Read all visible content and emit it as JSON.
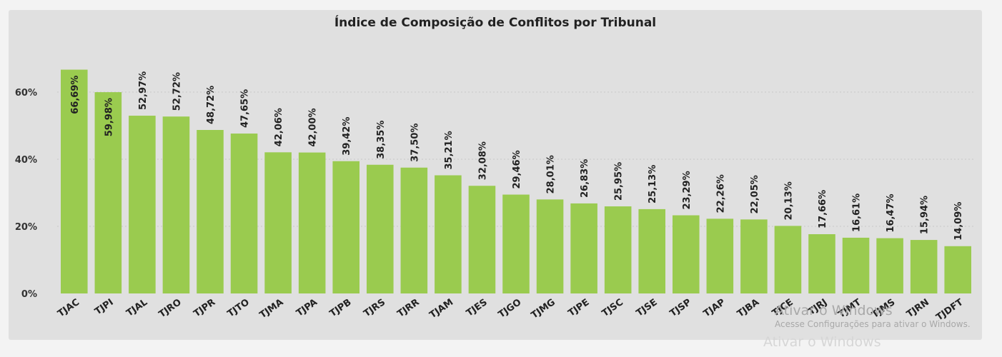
{
  "chart_data": {
    "type": "bar",
    "title": "Índice de Composição de Conflitos por Tribunal",
    "xlabel": "",
    "ylabel": "",
    "ylim": [
      0,
      70
    ],
    "yticks": [
      "0%",
      "20%",
      "40%",
      "60%"
    ],
    "ytick_values": [
      0,
      20,
      40,
      60
    ],
    "grid": true,
    "bar_color": "#9acb4f",
    "categories": [
      "TJAC",
      "TJPI",
      "TJAL",
      "TJRO",
      "TJPR",
      "TJTO",
      "TJMA",
      "TJPA",
      "TJPB",
      "TJRS",
      "TJRR",
      "TJAM",
      "TJES",
      "TJGO",
      "TJMG",
      "TJPE",
      "TJSC",
      "TJSE",
      "TJSP",
      "TJAP",
      "TJBA",
      "TJCE",
      "TJRJ",
      "TJMT",
      "TJMS",
      "TJRN",
      "TJDFT"
    ],
    "values": [
      66.69,
      59.98,
      52.97,
      52.72,
      48.72,
      47.65,
      42.06,
      42.0,
      39.42,
      38.35,
      37.5,
      35.21,
      32.08,
      29.46,
      28.01,
      26.83,
      25.95,
      25.13,
      23.29,
      22.26,
      22.05,
      20.13,
      17.66,
      16.61,
      16.47,
      15.94,
      14.09
    ],
    "data_labels": [
      "66,69%",
      "59,98%",
      "52,97%",
      "52,72%",
      "48,72%",
      "47,65%",
      "42,06%",
      "42,00%",
      "39,42%",
      "38,35%",
      "37,50%",
      "35,21%",
      "32,08%",
      "29,46%",
      "28,01%",
      "26,83%",
      "25,95%",
      "25,13%",
      "23,29%",
      "22,26%",
      "22,05%",
      "20,13%",
      "17,66%",
      "16,61%",
      "16,47%",
      "15,94%",
      "14,09%"
    ]
  },
  "watermark": {
    "title": "Ativar o Windows",
    "subtitle": "Acesse Configurações para ativar o Windows.",
    "title_repeat": "Ativar o Windows"
  }
}
